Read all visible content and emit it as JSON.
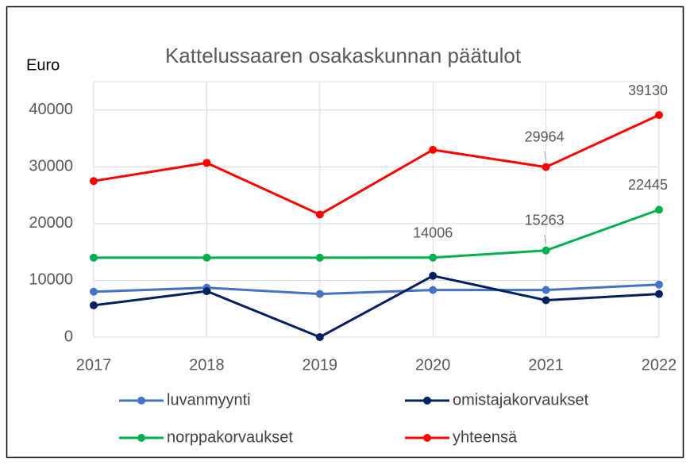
{
  "chart_data": {
    "type": "line",
    "title": "Kattelussaaren osakaskunnan päätulot",
    "y_label": "Euro",
    "categories": [
      "2017",
      "2018",
      "2019",
      "2020",
      "2021",
      "2022"
    ],
    "ylim": [
      0,
      45000
    ],
    "yticks": [
      0,
      10000,
      20000,
      30000,
      40000
    ],
    "grid": true,
    "legend": "bottom",
    "series": [
      {
        "name": "luvanmyynti",
        "color": "#4472c4",
        "values": [
          8000,
          8700,
          7600,
          8300,
          8300,
          9260
        ],
        "labeled": []
      },
      {
        "name": "omistajakorvaukset",
        "color": "#002060",
        "values": [
          5600,
          8100,
          0,
          10800,
          6500,
          7600
        ],
        "labeled": []
      },
      {
        "name": "norppakorvaukset",
        "color": "#00b050",
        "values": [
          14000,
          14000,
          14000,
          14006,
          15263,
          22445
        ],
        "labeled": [
          3,
          4,
          5
        ]
      },
      {
        "name": "yhteensä",
        "color": "#ff0000",
        "values": [
          27500,
          30700,
          21600,
          33000,
          29964,
          39130
        ],
        "labeled": [
          4,
          5
        ]
      }
    ]
  }
}
